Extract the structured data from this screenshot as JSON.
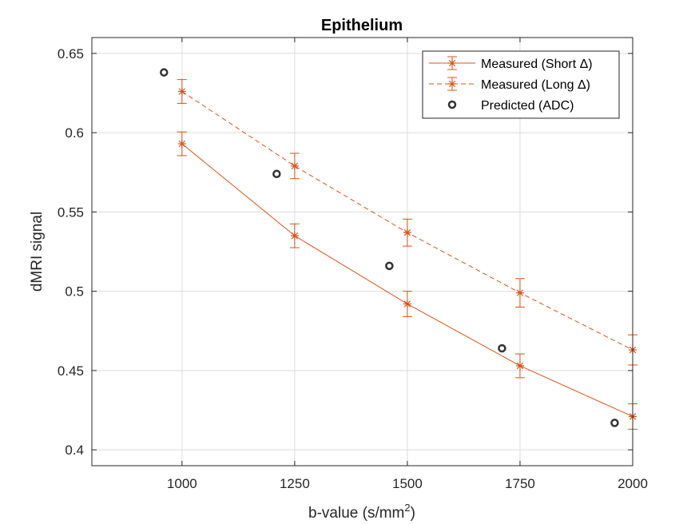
{
  "chart_data": {
    "type": "line",
    "title": "Epithelium",
    "xlabel": {
      "base": "b-value (s/mm",
      "sup": "2",
      "close": ")"
    },
    "ylabel": "dMRI signal",
    "xlim": [
      800,
      2000
    ],
    "ylim": [
      0.39,
      0.66
    ],
    "xticks": [
      1000,
      1250,
      1500,
      1750,
      2000
    ],
    "xtick_labels": [
      "1000",
      "1250",
      "1500",
      "1750",
      "2000"
    ],
    "yticks": [
      0.4,
      0.45,
      0.5,
      0.55,
      0.6,
      0.65
    ],
    "ytick_labels": [
      "0.4",
      "0.45",
      "0.5",
      "0.55",
      "0.6",
      "0.65"
    ],
    "grid": true,
    "legend_position": "top-right",
    "series": [
      {
        "name": "Measured (Short Δ)",
        "style": "solid",
        "marker": "star",
        "color": "#D95319",
        "x": [
          1000,
          1250,
          1500,
          1750,
          2000
        ],
        "y": [
          0.593,
          0.535,
          0.492,
          0.453,
          0.421
        ],
        "err": [
          0.0075,
          0.0075,
          0.008,
          0.0075,
          0.008
        ]
      },
      {
        "name": "Measured (Long Δ)",
        "style": "dashed",
        "marker": "star",
        "color": "#D95319",
        "x": [
          1000,
          1250,
          1500,
          1750,
          2000
        ],
        "y": [
          0.626,
          0.579,
          0.537,
          0.499,
          0.463
        ],
        "err": [
          0.0075,
          0.008,
          0.0085,
          0.009,
          0.0095
        ]
      },
      {
        "name": "Predicted (ADC)",
        "style": "none",
        "marker": "circle",
        "color": "#333333",
        "x": [
          960,
          1210,
          1460,
          1710,
          1960
        ],
        "y": [
          0.638,
          0.574,
          0.516,
          0.464,
          0.417
        ]
      }
    ]
  }
}
